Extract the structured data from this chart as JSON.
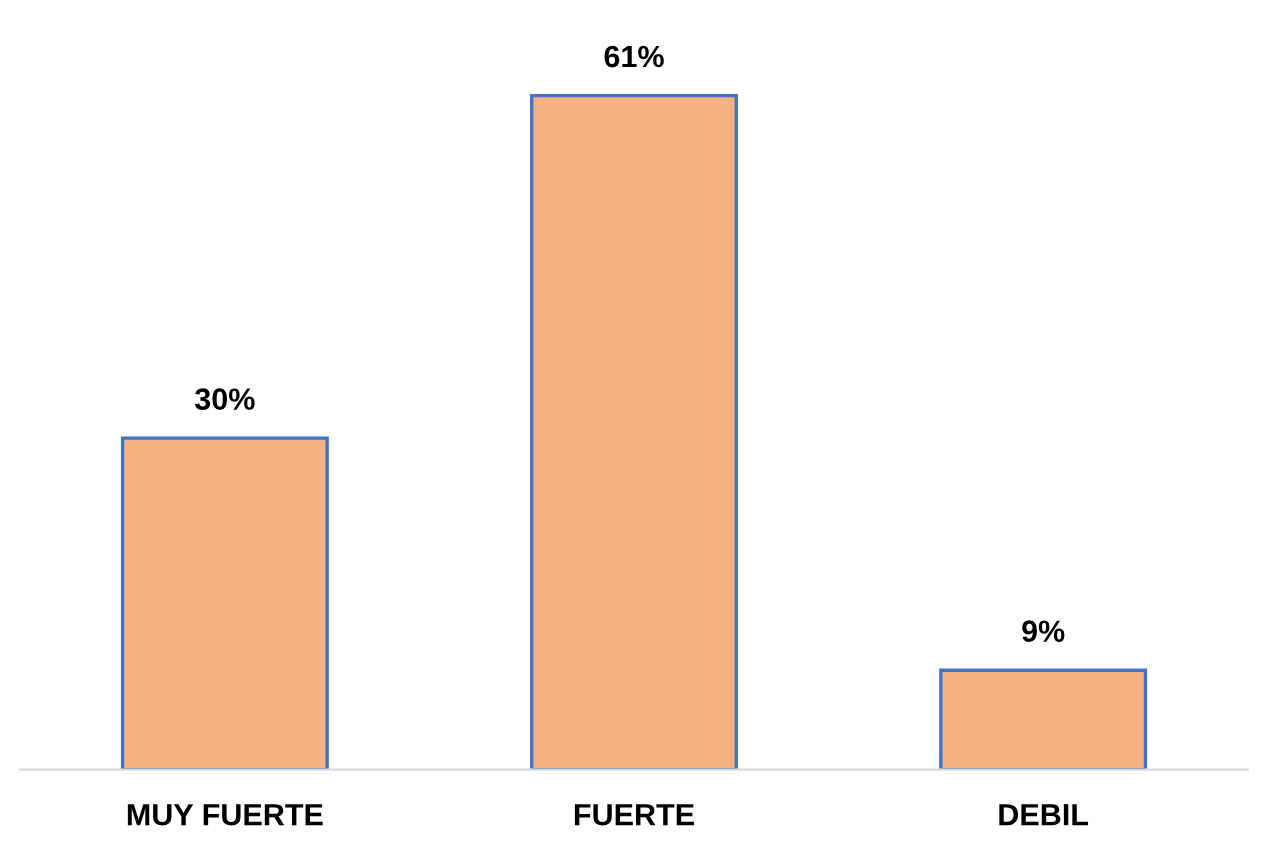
{
  "chart_data": {
    "type": "bar",
    "categories": [
      "MUY FUERTE",
      "FUERTE",
      "DEBIL"
    ],
    "values": [
      30,
      61,
      9
    ],
    "value_labels": [
      "30%",
      "61%",
      "9%"
    ],
    "color": "#f4b183",
    "grid": false,
    "legend": false
  }
}
